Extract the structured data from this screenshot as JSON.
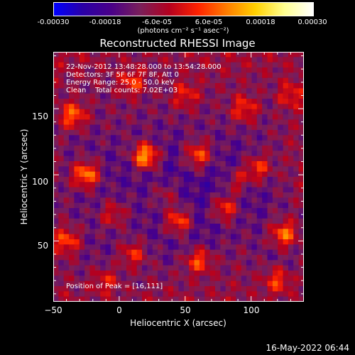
{
  "colorbar": {
    "ticks": [
      "-0.00030",
      "-0.00018",
      "-6.0e-05",
      "6.0e-05",
      "0.00018",
      "0.00030"
    ],
    "unit": "(photons cm⁻² s⁻¹ asec⁻²)",
    "colors": [
      "#0000ff",
      "#2a00a6",
      "#4a0088",
      "#7a1f5a",
      "#b4001f",
      "#ff2200",
      "#ff7d00",
      "#ffd000",
      "#ffff90",
      "#ffffff"
    ]
  },
  "annotations": {
    "line1": "22-Nov-2012 13:48:28.000 to 13:54:28.000",
    "line2": "Detectors: 3F 5F 6F 7F 8F, Att 0",
    "line3": "Energy Range: 25.0 - 50.0 keV",
    "line4": "Clean    Total counts: 7.02E+03",
    "peak": "Position of Peak = [16,111]"
  },
  "footer": "16-May-2022 06:44",
  "chart_data": {
    "type": "heatmap",
    "title": "Reconstructed RHESSI Image",
    "xlabel": "Heliocentric X (arcsec)",
    "ylabel": "Heliocentric Y (arcsec)",
    "xlim": [
      -50,
      140
    ],
    "ylim": [
      4,
      193
    ],
    "xticks": [
      "−50",
      "0",
      "50",
      "100"
    ],
    "xtick_values": [
      -50,
      0,
      50,
      100
    ],
    "yticks": [
      "50",
      "100",
      "150"
    ],
    "ytick_values": [
      50,
      100,
      150
    ],
    "clim": [
      -0.0003,
      0.0003
    ],
    "peak": [
      16,
      111
    ],
    "sources": [
      {
        "x": 20,
        "y": 114,
        "amplitude": 0.0003
      },
      {
        "x": -25,
        "y": 100,
        "amplitude": 0.00025
      },
      {
        "x": -35,
        "y": 145,
        "amplitude": 0.0002
      },
      {
        "x": 60,
        "y": 115,
        "amplitude": 0.0002
      },
      {
        "x": 45,
        "y": 65,
        "amplitude": 0.00022
      },
      {
        "x": 80,
        "y": 75,
        "amplitude": 0.0002
      },
      {
        "x": 125,
        "y": 55,
        "amplitude": 0.00022
      },
      {
        "x": 105,
        "y": 105,
        "amplitude": 0.00018
      },
      {
        "x": -40,
        "y": 50,
        "amplitude": 0.00018
      },
      {
        "x": 10,
        "y": 40,
        "amplitude": 0.00015
      },
      {
        "x": 60,
        "y": 35,
        "amplitude": 0.00018
      },
      {
        "x": 95,
        "y": 150,
        "amplitude": 0.00015
      },
      {
        "x": 10,
        "y": 170,
        "amplitude": 0.00015
      },
      {
        "x": 130,
        "y": 160,
        "amplitude": 0.00012
      },
      {
        "x": 120,
        "y": 20,
        "amplitude": 0.00015
      },
      {
        "x": -10,
        "y": 20,
        "amplitude": 0.00012
      },
      {
        "x": 50,
        "y": 160,
        "amplitude": 0.00012
      },
      {
        "x": 90,
        "y": 95,
        "amplitude": 0.00015
      },
      {
        "x": -5,
        "y": 70,
        "amplitude": 0.00012
      },
      {
        "x": 35,
        "y": 85,
        "amplitude": 0.0001
      }
    ]
  }
}
